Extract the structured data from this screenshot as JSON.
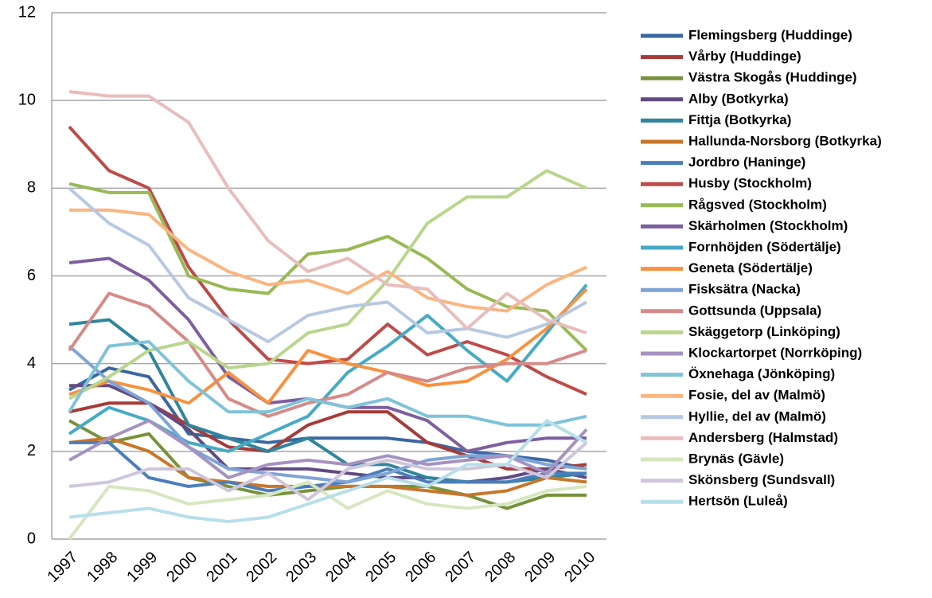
{
  "chart_data": {
    "type": "line",
    "categories": [
      "1997",
      "1998",
      "1999",
      "2000",
      "2001",
      "2002",
      "2003",
      "2004",
      "2005",
      "2006",
      "2007",
      "2008",
      "2009",
      "2010"
    ],
    "ylim": [
      0,
      12
    ],
    "yticks": [
      0,
      2,
      4,
      6,
      8,
      10,
      12
    ],
    "grid": true,
    "legend": "right",
    "series": [
      {
        "name": "Flemingsberg (Huddinge)",
        "color": "#3a67a0",
        "values": [
          3.4,
          3.9,
          3.7,
          2.4,
          2.3,
          2.2,
          2.3,
          2.3,
          2.3,
          2.2,
          2.0,
          1.9,
          1.8,
          1.6
        ]
      },
      {
        "name": "Vårby (Huddinge)",
        "color": "#a63b38",
        "values": [
          2.9,
          3.1,
          3.1,
          2.6,
          2.1,
          2.0,
          2.6,
          2.9,
          2.9,
          2.2,
          1.9,
          1.6,
          1.6,
          1.7
        ]
      },
      {
        "name": "Västra Skogås (Huddinge)",
        "color": "#77923c",
        "values": [
          2.7,
          2.2,
          2.4,
          1.4,
          1.2,
          1.0,
          1.1,
          1.2,
          1.2,
          1.2,
          1.0,
          0.7,
          1.0,
          1.0
        ]
      },
      {
        "name": "Alby (Botkyrka)",
        "color": "#624a82",
        "values": [
          3.5,
          3.5,
          3.1,
          2.5,
          1.6,
          1.6,
          1.6,
          1.5,
          1.4,
          1.4,
          1.3,
          1.4,
          1.6,
          1.4
        ]
      },
      {
        "name": "Fittja (Botkyrka)",
        "color": "#31859c",
        "values": [
          4.9,
          5.0,
          4.3,
          2.6,
          2.3,
          2.0,
          2.3,
          1.7,
          1.7,
          1.4,
          1.3,
          1.3,
          1.4,
          1.5
        ]
      },
      {
        "name": "Hallunda-Norsborg (Botkyrka)",
        "color": "#c77729",
        "values": [
          2.2,
          2.3,
          2.0,
          1.4,
          1.3,
          1.2,
          1.2,
          1.2,
          1.2,
          1.1,
          1.0,
          1.1,
          1.4,
          1.3
        ]
      },
      {
        "name": "Jordbro (Haninge)",
        "color": "#4a7ebb",
        "values": [
          2.2,
          2.2,
          1.4,
          1.2,
          1.3,
          1.1,
          1.2,
          1.3,
          1.6,
          1.3,
          1.3,
          1.3,
          1.5,
          1.5
        ]
      },
      {
        "name": "Husby (Stockholm)",
        "color": "#be4b48",
        "values": [
          9.4,
          8.4,
          8.0,
          6.2,
          5.0,
          4.1,
          4.0,
          4.1,
          4.9,
          4.2,
          4.5,
          4.2,
          3.7,
          3.3
        ]
      },
      {
        "name": "Rågsved (Stockholm)",
        "color": "#98b954",
        "values": [
          8.1,
          7.9,
          7.9,
          6.0,
          5.7,
          5.6,
          6.5,
          6.6,
          6.9,
          6.4,
          5.7,
          5.3,
          5.2,
          4.3
        ]
      },
      {
        "name": "Skärholmen (Stockholm)",
        "color": "#7d5fa0",
        "values": [
          6.3,
          6.4,
          5.9,
          5.0,
          3.7,
          3.1,
          3.2,
          3.0,
          3.0,
          2.7,
          2.0,
          2.2,
          2.3,
          2.3
        ]
      },
      {
        "name": "Fornhöjden (Södertälje)",
        "color": "#46aac5",
        "values": [
          2.4,
          3.0,
          2.7,
          2.2,
          2.0,
          2.4,
          2.8,
          3.8,
          4.4,
          5.1,
          4.3,
          3.6,
          4.7,
          5.8
        ]
      },
      {
        "name": "Geneta (Södertälje)",
        "color": "#f69240",
        "values": [
          3.3,
          3.6,
          3.4,
          3.1,
          3.8,
          3.1,
          4.3,
          4.0,
          3.8,
          3.5,
          3.6,
          4.1,
          4.8,
          5.7
        ]
      },
      {
        "name": "Fisksätra (Nacka)",
        "color": "#7ea4d6",
        "values": [
          4.4,
          3.6,
          3.1,
          2.1,
          1.6,
          1.5,
          1.4,
          1.3,
          1.5,
          1.8,
          1.9,
          1.9,
          1.7,
          1.6
        ]
      },
      {
        "name": "Gottsunda (Uppsala)",
        "color": "#d68a88",
        "values": [
          4.3,
          5.6,
          5.3,
          4.5,
          3.2,
          2.8,
          3.1,
          3.3,
          3.8,
          3.6,
          3.9,
          4.0,
          4.0,
          4.3
        ]
      },
      {
        "name": "Skäggetorp (Linköping)",
        "color": "#b9d68c",
        "values": [
          3.2,
          3.7,
          4.3,
          4.5,
          3.9,
          4.0,
          4.7,
          4.9,
          5.9,
          7.2,
          7.8,
          7.8,
          8.4,
          8.0
        ]
      },
      {
        "name": "Klockartorpet (Norrköping)",
        "color": "#a692c1",
        "values": [
          1.8,
          2.3,
          2.7,
          2.1,
          1.4,
          1.7,
          1.8,
          1.7,
          1.9,
          1.7,
          1.8,
          1.9,
          1.5,
          2.5
        ]
      },
      {
        "name": "Öxnehaga (Jönköping)",
        "color": "#7fc3d9",
        "values": [
          2.9,
          4.4,
          4.5,
          3.6,
          2.9,
          2.9,
          3.2,
          3.0,
          3.2,
          2.8,
          2.8,
          2.6,
          2.6,
          2.8
        ]
      },
      {
        "name": "Fosie, del av (Malmö)",
        "color": "#fbb57f",
        "values": [
          7.5,
          7.5,
          7.4,
          6.6,
          6.1,
          5.8,
          5.9,
          5.6,
          6.1,
          5.5,
          5.3,
          5.2,
          5.8,
          6.2
        ]
      },
      {
        "name": "Hyllie, del av (Malmö)",
        "color": "#b7c8e3",
        "values": [
          8.0,
          7.2,
          6.7,
          5.5,
          5.0,
          4.5,
          5.1,
          5.3,
          5.4,
          4.7,
          4.8,
          4.6,
          4.9,
          5.4
        ]
      },
      {
        "name": "Andersberg (Halmstad)",
        "color": "#e8bdbc",
        "values": [
          10.2,
          10.1,
          10.1,
          9.5,
          8.0,
          6.8,
          6.1,
          6.4,
          5.8,
          5.7,
          4.8,
          5.6,
          5.0,
          4.7
        ]
      },
      {
        "name": "Brynäs (Gävle)",
        "color": "#d6e7bf",
        "values": [
          0.0,
          1.2,
          1.1,
          0.8,
          0.9,
          1.0,
          1.3,
          0.7,
          1.1,
          0.8,
          0.7,
          0.8,
          1.1,
          1.2
        ]
      },
      {
        "name": "Skönsberg (Sundsvall)",
        "color": "#cfc6de",
        "values": [
          1.2,
          1.3,
          1.6,
          1.6,
          1.1,
          1.5,
          0.9,
          1.6,
          1.8,
          1.6,
          1.6,
          1.7,
          1.4,
          2.2
        ]
      },
      {
        "name": "Hertsön (Luleå)",
        "color": "#b6dfea",
        "values": [
          0.5,
          0.6,
          0.7,
          0.5,
          0.4,
          0.5,
          0.8,
          1.1,
          1.4,
          1.2,
          1.7,
          1.7,
          2.7,
          2.2
        ]
      }
    ]
  }
}
